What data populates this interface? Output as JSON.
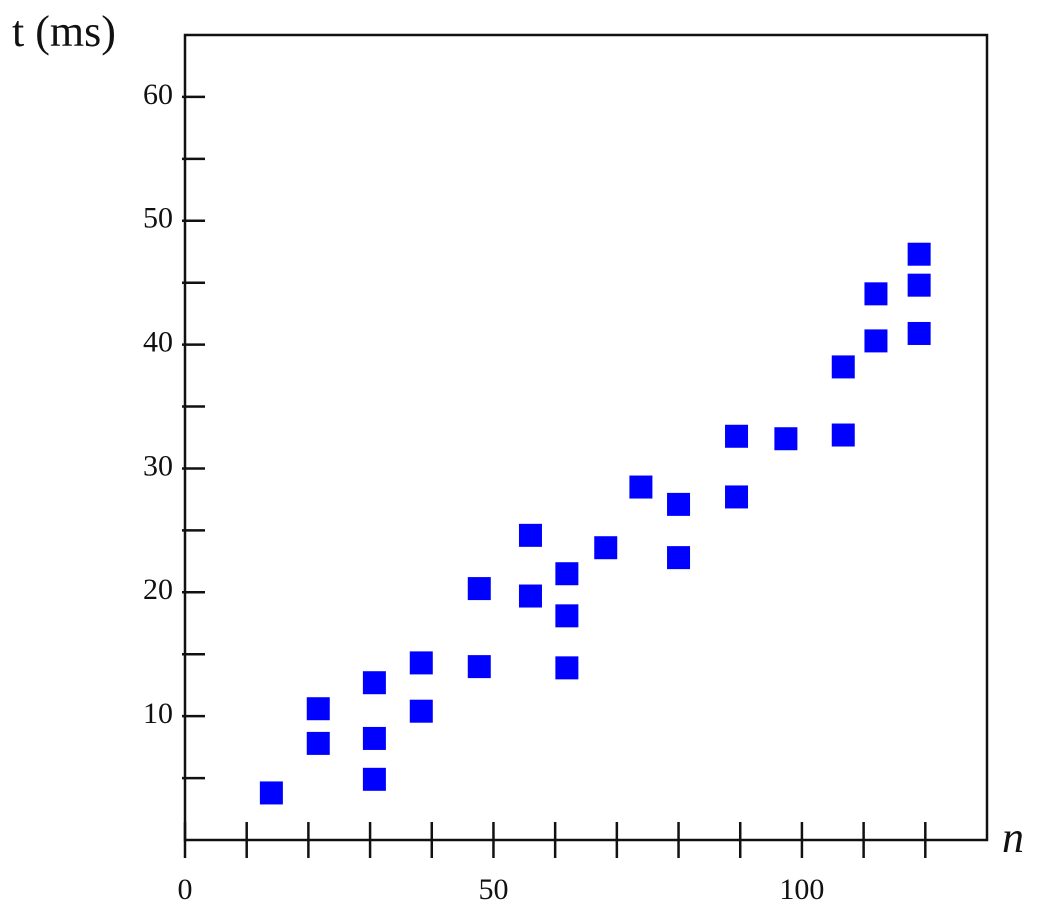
{
  "chart_data": {
    "type": "scatter",
    "y_label": "t (ms)",
    "x_label": "n",
    "x": [
      14,
      21.6,
      21.6,
      30.7,
      30.7,
      30.7,
      38.3,
      38.3,
      47.7,
      47.7,
      56,
      56,
      61.9,
      61.9,
      61.9,
      68.2,
      73.9,
      80,
      80,
      89.4,
      89.4,
      97.4,
      106.7,
      106.7,
      112,
      112,
      119,
      119,
      119
    ],
    "values": [
      3.8,
      10.6,
      7.8,
      12.7,
      8.2,
      4.9,
      14.3,
      10.4,
      20.3,
      14.0,
      24.6,
      19.7,
      21.5,
      18.1,
      13.9,
      23.6,
      28.5,
      27.1,
      22.8,
      32.6,
      27.7,
      32.4,
      32.7,
      38.2,
      44.1,
      40.3,
      47.3,
      44.8,
      40.9
    ],
    "color": "#0000ff",
    "xlim": [
      0,
      130
    ],
    "ylim": [
      0,
      65
    ],
    "xticks": [
      0,
      50,
      100
    ],
    "x_minor_ticks": [
      10,
      20,
      30,
      40,
      60,
      70,
      80,
      90,
      110,
      120
    ],
    "yticks": [
      10,
      20,
      30,
      40,
      50,
      60
    ],
    "y_minor_ticks": [
      5,
      15,
      25,
      35,
      45,
      55
    ]
  }
}
